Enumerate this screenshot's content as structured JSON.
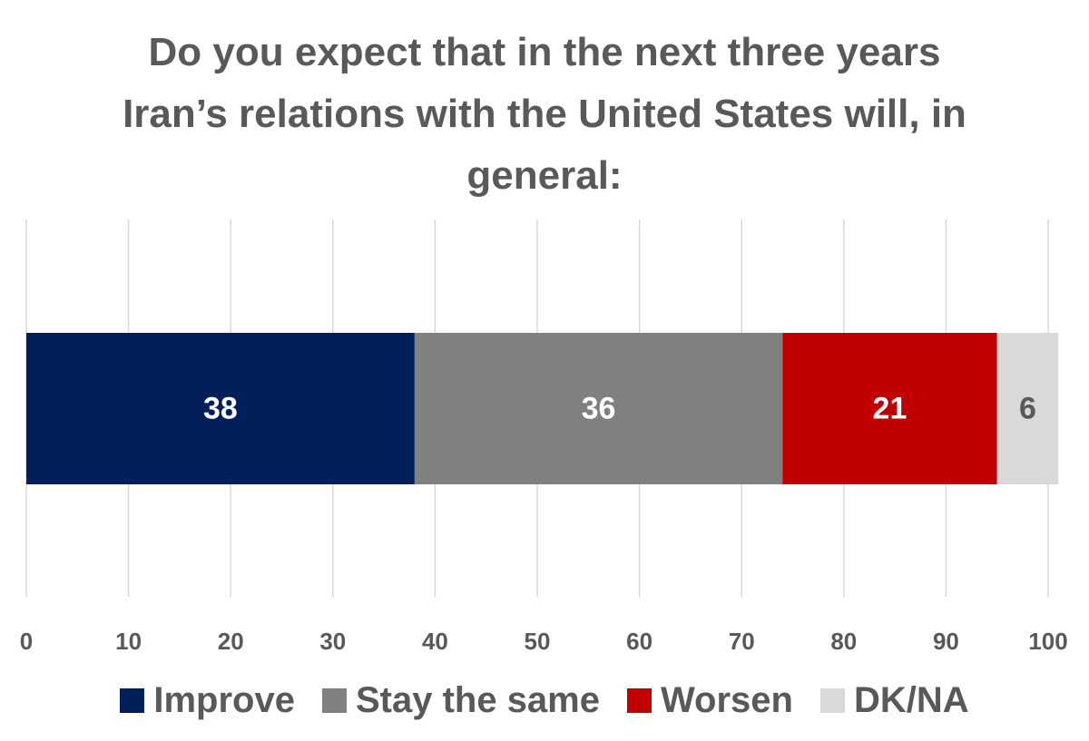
{
  "chart_data": {
    "type": "bar",
    "orientation": "horizontal",
    "stacked": true,
    "title": "Do you expect that in the next three years Iran’s relations with the United States will, in general:",
    "xlabel": "",
    "ylabel": "",
    "xlim": [
      0,
      100
    ],
    "x_ticks": [
      0,
      10,
      20,
      30,
      40,
      50,
      60,
      70,
      80,
      90,
      100
    ],
    "grid": true,
    "legend_position": "bottom",
    "series": [
      {
        "name": "Improve",
        "value": 38,
        "label": "38",
        "color": "#001F5B",
        "label_color": "#FFFFFF"
      },
      {
        "name": "Stay the same",
        "value": 36,
        "label": "36",
        "color": "#808080",
        "label_color": "#FFFFFF"
      },
      {
        "name": "Worsen",
        "value": 21,
        "label": "21",
        "color": "#C00000",
        "label_color": "#FFFFFF"
      },
      {
        "name": "DK/NA",
        "value": 6,
        "label": "6",
        "color": "#D9D9D9",
        "label_color": "#595959"
      }
    ]
  }
}
